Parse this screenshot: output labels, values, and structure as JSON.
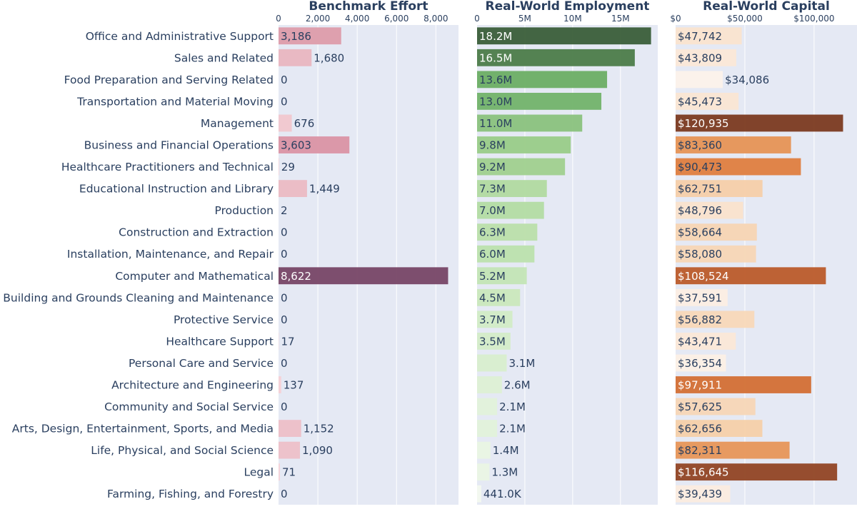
{
  "chart_data": [
    {
      "type": "bar",
      "orientation": "horizontal",
      "title": "Benchmark Effort",
      "xlim": [
        0,
        9150
      ],
      "ticks": [
        0,
        2000,
        4000,
        6000,
        8000
      ],
      "tick_labels": [
        "0",
        "2,000",
        "4,000",
        "6,000",
        "8,000"
      ],
      "grid": true,
      "colorscale": [
        "#f6d3d8",
        "#d4889a",
        "#774666"
      ],
      "categories": [
        "Office and Administrative Support",
        "Sales and Related",
        "Food Preparation and Serving Related",
        "Transportation and Material Moving",
        "Management",
        "Business and Financial Operations",
        "Healthcare Practitioners and Technical",
        "Educational Instruction and Library",
        "Production",
        "Construction and Extraction",
        "Installation, Maintenance, and Repair",
        "Computer and Mathematical",
        "Building and Grounds Cleaning and Maintenance",
        "Protective Service",
        "Healthcare Support",
        "Personal Care and Service",
        "Architecture and Engineering",
        "Community and Social Service",
        "Arts, Design, Entertainment, Sports, and Media",
        "Life, Physical, and Social Science",
        "Legal",
        "Farming, Fishing, and Forestry"
      ],
      "values": [
        3186,
        1680,
        0,
        0,
        676,
        3603,
        29,
        1449,
        2,
        0,
        0,
        8622,
        0,
        0,
        17,
        0,
        137,
        0,
        1152,
        1090,
        71,
        0
      ],
      "labels": [
        "3,186",
        "1,680",
        "0",
        "0",
        "676",
        "3,603",
        "29",
        "1,449",
        "2",
        "0",
        "0",
        "8,622",
        "0",
        "0",
        "17",
        "0",
        "137",
        "0",
        "1,152",
        "1,090",
        "71",
        "0"
      ]
    },
    {
      "type": "bar",
      "orientation": "horizontal",
      "title": "Real-World Employment",
      "xlim": [
        0,
        18900000
      ],
      "ticks": [
        0,
        5000000,
        10000000,
        15000000
      ],
      "tick_labels": [
        "0",
        "5M",
        "10M",
        "15M"
      ],
      "grid": true,
      "colorscale": [
        "#f7fbf5",
        "#c9e8bb",
        "#a1d18f",
        "#6aae64",
        "#3a5e39"
      ],
      "values": [
        18200000,
        16500000,
        13600000,
        13000000,
        11000000,
        9800000,
        9200000,
        7300000,
        7000000,
        6300000,
        6000000,
        5200000,
        4500000,
        3700000,
        3500000,
        3100000,
        2600000,
        2100000,
        2100000,
        1400000,
        1300000,
        441000
      ],
      "labels": [
        "18.2M",
        "16.5M",
        "13.6M",
        "13.0M",
        "11.0M",
        "9.8M",
        "9.2M",
        "7.3M",
        "7.0M",
        "6.3M",
        "6.0M",
        "5.2M",
        "4.5M",
        "3.7M",
        "3.5M",
        "3.1M",
        "2.6M",
        "2.1M",
        "2.1M",
        "1.4M",
        "1.3M",
        "441.0K"
      ]
    },
    {
      "type": "bar",
      "orientation": "horizontal",
      "title": "Real-World Capital",
      "xlim": [
        0,
        131000
      ],
      "ticks": [
        0,
        50000,
        100000
      ],
      "tick_labels": [
        "$0",
        "$50,000",
        "$100,000"
      ],
      "grid": true,
      "colorscale": [
        "#fcf2ea",
        "#fae3cd",
        "#f6cfa8",
        "#eca467",
        "#dd7a3a",
        "#c5602c",
        "#7b3a20"
      ],
      "values": [
        47742,
        43809,
        34086,
        45473,
        120935,
        83360,
        90473,
        62751,
        48796,
        58664,
        58080,
        108524,
        37591,
        56882,
        43471,
        36354,
        97911,
        57625,
        62656,
        82311,
        116645,
        39439
      ],
      "labels": [
        "$47,742",
        "$43,809",
        "$34,086",
        "$45,473",
        "$120,935",
        "$83,360",
        "$90,473",
        "$62,751",
        "$48,796",
        "$58,664",
        "$58,080",
        "$108,524",
        "$37,591",
        "$56,882",
        "$43,471",
        "$36,354",
        "$97,911",
        "$57,625",
        "$62,656",
        "$82,311",
        "$116,645",
        "$39,439"
      ]
    }
  ],
  "colors": {
    "plot_bg": "#e5e9f4",
    "text": "#2a3f5f",
    "grid": "#ffffff"
  }
}
